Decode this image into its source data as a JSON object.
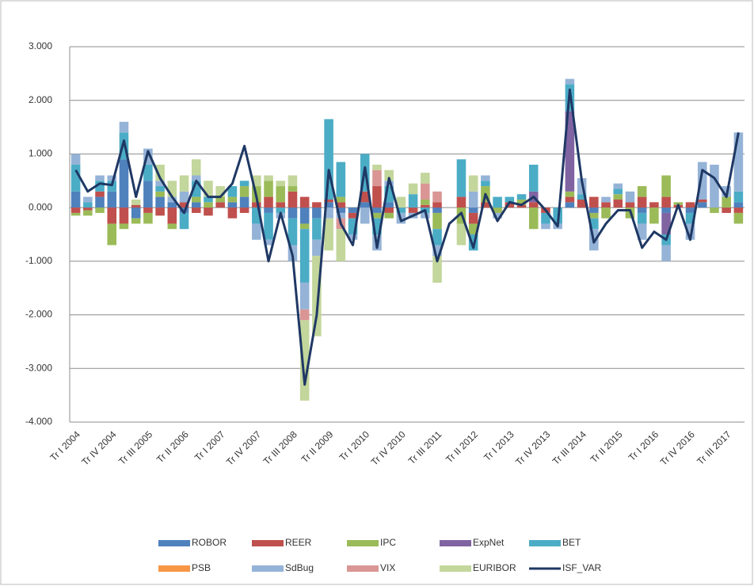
{
  "chart_data": {
    "type": "bar",
    "stacked": true,
    "grid": true,
    "ylim": [
      -4,
      3
    ],
    "yticks": [
      {
        "value": -4,
        "label": "-4.000"
      },
      {
        "value": -3,
        "label": "-3.000"
      },
      {
        "value": -2,
        "label": "-2.000"
      },
      {
        "value": -1,
        "label": "-1.000"
      },
      {
        "value": 0,
        "label": "0.000"
      },
      {
        "value": 1,
        "label": "1.000"
      },
      {
        "value": 2,
        "label": "2.000"
      },
      {
        "value": 3,
        "label": "3.000"
      }
    ],
    "categories": [
      "Tr I 2004",
      null,
      null,
      "Tr IV 2004",
      null,
      null,
      "Tr III 2005",
      null,
      null,
      "Tr II 2006",
      null,
      null,
      "Tr I 2007",
      null,
      null,
      "Tr IV 2007",
      null,
      null,
      "Tr III 2008",
      null,
      null,
      "Tr II 2009",
      null,
      null,
      "Tr I 2010",
      null,
      null,
      "Tr IV 2010",
      null,
      null,
      "Tr III 2011",
      null,
      null,
      "Tr II 2012",
      null,
      null,
      "Tr I 2013",
      null,
      null,
      "Tr IV 2013",
      null,
      null,
      "Tr III 2014",
      null,
      null,
      "Tr II 2015",
      null,
      null,
      "Tr I 2016",
      null,
      null,
      "Tr IV 2016",
      null,
      null,
      "Tr III 2017",
      null
    ],
    "series": [
      {
        "name": "ROBOR",
        "color": "#4f81bd",
        "values": [
          0.3,
          0,
          0.2,
          0.3,
          0.9,
          -0.2,
          0.5,
          0.2,
          0.1,
          -0.1,
          0.1,
          0,
          0,
          0.1,
          0.2,
          0,
          -0.1,
          0,
          -0.2,
          -0.3,
          -0.2,
          0.1,
          -0.1,
          -0.1,
          0.1,
          -0.1,
          0.1,
          0,
          0,
          0,
          -0.1,
          0,
          0,
          -0.1,
          0,
          0,
          0,
          0,
          0,
          0,
          0,
          0.1,
          0,
          -0.1,
          0,
          0,
          0,
          -0.1,
          0,
          -0.1,
          0,
          -0.1,
          0.1,
          0,
          0,
          0.1
        ]
      },
      {
        "name": "REER",
        "color": "#c0504d",
        "values": [
          -0.1,
          -0.05,
          0.1,
          -0.3,
          -0.3,
          0.05,
          -0.1,
          -0.15,
          -0.3,
          0.1,
          -0.1,
          -0.15,
          0.1,
          -0.2,
          -0.1,
          0.1,
          0.2,
          0.1,
          0.3,
          0.2,
          0.1,
          0.05,
          0.1,
          -0.1,
          0.2,
          0.4,
          -0.1,
          0,
          -0.1,
          0.05,
          0.1,
          0,
          0.2,
          -0.2,
          0.1,
          0,
          0.1,
          0.05,
          0.1,
          -0.1,
          0,
          0.1,
          0.15,
          0.2,
          0.1,
          0.15,
          0.1,
          0.2,
          0.1,
          0.2,
          0.05,
          0.1,
          0.05,
          0,
          -0.1,
          -0.1
        ]
      },
      {
        "name": "IPC",
        "color": "#9bbb59",
        "values": [
          -0.05,
          -0.1,
          -0.1,
          -0.4,
          -0.1,
          -0.1,
          -0.2,
          0.1,
          -0.1,
          0,
          0.1,
          0.1,
          0.1,
          0.1,
          0.2,
          0.3,
          0.3,
          0.3,
          0.1,
          -0.1,
          0,
          0,
          0.1,
          0,
          0,
          -0.1,
          -0.1,
          0,
          0,
          0.1,
          -0.3,
          0,
          -0.3,
          -0.2,
          0.3,
          -0.1,
          0,
          0.1,
          -0.4,
          0,
          0,
          0.1,
          0,
          -0.1,
          -0.2,
          0.1,
          -0.2,
          0.2,
          -0.3,
          0.4,
          0.05,
          0,
          0,
          -0.1,
          0.2,
          -0.2
        ]
      },
      {
        "name": "ExpNet",
        "color": "#8064a2",
        "values": [
          0,
          0,
          0,
          0,
          0,
          0,
          0,
          0,
          0,
          0,
          0,
          0,
          0,
          0,
          0,
          0,
          0,
          0,
          0,
          0,
          0,
          0,
          0,
          0,
          0,
          0,
          0,
          0,
          0,
          0,
          0,
          0,
          0,
          0,
          0,
          0,
          0,
          0,
          0.2,
          0,
          0,
          1.5,
          0,
          0,
          0,
          0,
          0,
          0,
          0,
          -0.4,
          0,
          0,
          0,
          0,
          0,
          0
        ]
      },
      {
        "name": "BET",
        "color": "#4bacc6",
        "values": [
          0.5,
          0.1,
          0.2,
          0.2,
          0.5,
          0,
          0.3,
          0.1,
          0,
          -0.3,
          0.3,
          0.1,
          0,
          0.2,
          0.1,
          -0.3,
          -0.5,
          -0.1,
          -0.5,
          -1,
          -0.4,
          1.5,
          0.65,
          -0.3,
          0.7,
          -0.3,
          0.3,
          -0.1,
          0.25,
          -0.1,
          -0.3,
          0,
          0.7,
          -0.3,
          0.1,
          0.2,
          0.1,
          0.1,
          0.5,
          -0.2,
          -0.3,
          0.5,
          0.1,
          -0.2,
          0,
          0.1,
          0,
          -0.2,
          0,
          -0.2,
          0,
          -0.2,
          0,
          0,
          0,
          0.2
        ]
      },
      {
        "name": "PSB",
        "color": "#f79646",
        "values": [
          0,
          0,
          0,
          0,
          0,
          0,
          0,
          0,
          0,
          0,
          0,
          0,
          0,
          0,
          0,
          0,
          0,
          0,
          0,
          0,
          0,
          0,
          0,
          0,
          0,
          0,
          0,
          0,
          0,
          0,
          0,
          0,
          0,
          0,
          0,
          0,
          0,
          0,
          0,
          0,
          0,
          0,
          0,
          0,
          0,
          0,
          0,
          0,
          0,
          0,
          0,
          0,
          0,
          0,
          0,
          0
        ]
      },
      {
        "name": "SdBug",
        "color": "#95b3d7",
        "values": [
          0.2,
          0.1,
          0.1,
          0.1,
          0.2,
          0,
          0.3,
          0.1,
          0.1,
          0.2,
          0.1,
          0,
          0,
          0,
          0,
          -0.3,
          -0.1,
          -0.1,
          -0.3,
          -0.5,
          -0.3,
          -0.2,
          -0.1,
          -0.1,
          -0.3,
          -0.3,
          0.1,
          -0.2,
          -0.1,
          -0.1,
          -0.2,
          0,
          0,
          0.3,
          0.1,
          -0.1,
          0,
          0,
          0,
          -0.1,
          -0.1,
          0.1,
          0.3,
          -0.4,
          0.1,
          0.1,
          0.2,
          -0.3,
          0,
          -0.3,
          0,
          -0.3,
          0.7,
          0.8,
          0.2,
          1.1
        ]
      },
      {
        "name": "VIX",
        "color": "#d99694",
        "values": [
          0,
          0,
          0,
          0,
          0,
          0,
          0,
          0,
          0,
          0,
          0,
          0,
          0,
          0,
          0,
          0,
          0,
          0,
          0,
          -0.2,
          0,
          0,
          -0.2,
          0,
          0,
          0.3,
          0,
          0,
          0,
          0.3,
          0.2,
          0,
          0,
          0,
          0,
          0,
          0,
          0,
          0,
          0,
          0,
          0,
          0,
          0,
          0,
          0,
          0,
          0,
          0,
          0,
          0,
          0,
          0,
          0,
          0,
          0
        ]
      },
      {
        "name": "EURIBOR",
        "color": "#c3d69b",
        "values": [
          0,
          0,
          0,
          0,
          0,
          0.1,
          0,
          0.3,
          0.3,
          0.3,
          0.3,
          0.3,
          0.2,
          0,
          0,
          0.2,
          0.1,
          0.1,
          0.2,
          -1.5,
          -1.5,
          -0.6,
          -0.6,
          0,
          0,
          0.1,
          0.2,
          0.2,
          0.2,
          0.2,
          -0.5,
          0,
          -0.4,
          0.3,
          0,
          0,
          0,
          0,
          0,
          0,
          0,
          0,
          0,
          0,
          0,
          0,
          0,
          0,
          0,
          0,
          0,
          0,
          0,
          0,
          0,
          0
        ]
      },
      {
        "name": "ISF_VAR",
        "type": "line",
        "color": "#1f3864",
        "values": [
          0.7,
          0.3,
          0.45,
          0.42,
          1.25,
          0.2,
          1.05,
          0.55,
          0.2,
          -0.1,
          0.5,
          0.2,
          0.2,
          0.45,
          1.15,
          0.2,
          -1,
          -0.1,
          -0.9,
          -3.3,
          -2,
          0.7,
          -0.3,
          -0.7,
          0.75,
          -0.75,
          0.55,
          -0.25,
          -0.15,
          -0.05,
          -1,
          -0.3,
          -0.1,
          -0.75,
          0.25,
          -0.25,
          0.1,
          0.05,
          0.2,
          -0.05,
          -0.35,
          2.2,
          0.5,
          -0.65,
          -0.3,
          -0.05,
          -0.05,
          -0.75,
          -0.45,
          -0.6,
          0.05,
          -0.6,
          0.7,
          0.55,
          0.2,
          1.4
        ]
      }
    ]
  }
}
